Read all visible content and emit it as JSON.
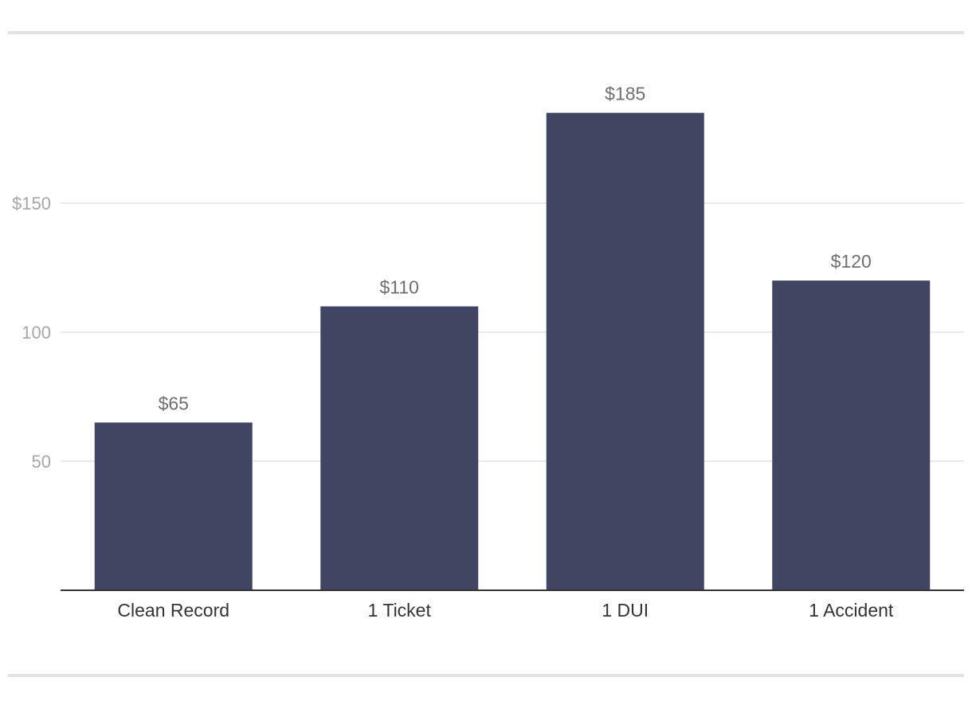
{
  "chart_data": {
    "type": "bar",
    "title": "",
    "xlabel": "",
    "ylabel": "",
    "categories": [
      "Clean Record",
      "1 Ticket",
      "1 DUI",
      "1 Accident"
    ],
    "values": [
      65,
      110,
      185,
      120
    ],
    "data_labels": [
      "$65",
      "$110",
      "$185",
      "$120"
    ],
    "ylim": [
      0,
      200
    ],
    "yticks": [
      {
        "value": 50,
        "label": "50"
      },
      {
        "value": 100,
        "label": "100"
      },
      {
        "value": 150,
        "label": "$150"
      }
    ],
    "grid": true,
    "legend": "none",
    "colors": {
      "bar": "#404562",
      "grid": "#e4e4e4",
      "axis": "#333333",
      "tick_text": "#a6a6a6",
      "category_text": "#333333",
      "data_label_text": "#6f6f6f"
    }
  }
}
